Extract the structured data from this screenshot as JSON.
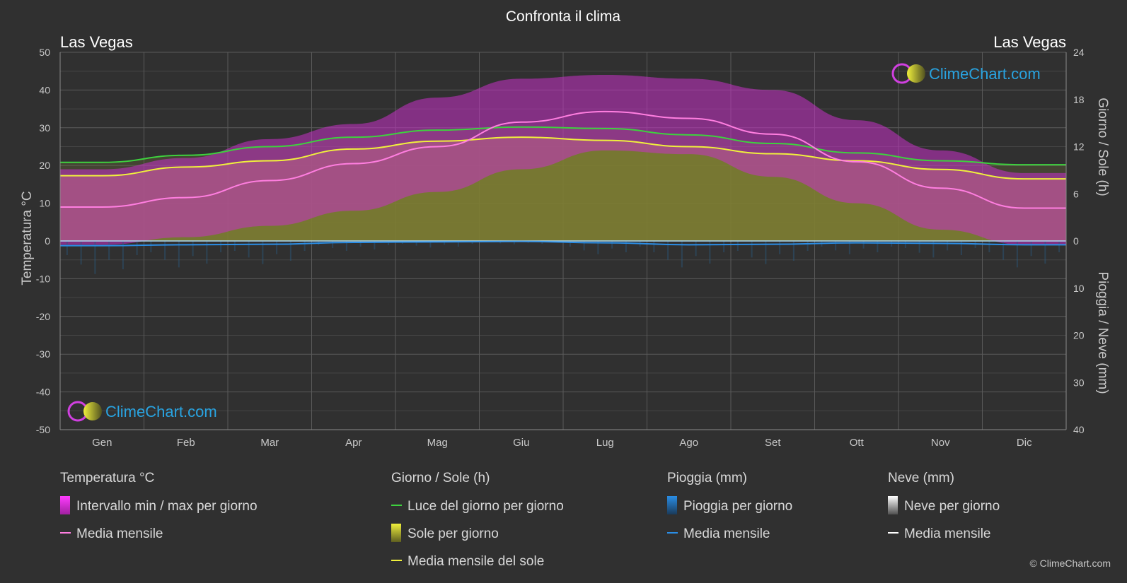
{
  "title": "Confronta il clima",
  "city_left": "Las Vegas",
  "city_right": "Las Vegas",
  "copyright": "© ClimeChart.com",
  "logo_text": "ClimeChart.com",
  "colors": {
    "background": "#303030",
    "temp_range": "#c832c8",
    "temp_mean": "#ff7ee0",
    "daylight": "#3ed13e",
    "sunshine": "#a8a832",
    "sunshine_mean": "#f0f03c",
    "rain": "#1e78c8",
    "rain_mean": "#2a8ee6",
    "snow": "#d8d8d8",
    "snow_mean": "#ffffff",
    "logo": "#29a3e0"
  },
  "chart_data": {
    "type": "area",
    "title": "Confronta il clima",
    "categories": [
      "Gen",
      "Feb",
      "Mar",
      "Apr",
      "Mag",
      "Giu",
      "Lug",
      "Ago",
      "Set",
      "Ott",
      "Nov",
      "Dic"
    ],
    "y_left": {
      "label": "Temperatura °C",
      "range": [
        -50,
        50
      ],
      "ticks": [
        "50",
        "40",
        "30",
        "20",
        "10",
        "0",
        "-10",
        "-20",
        "-30",
        "-40",
        "-50"
      ]
    },
    "y_right_top": {
      "label": "Giorno / Sole (h)",
      "range": [
        0,
        24
      ],
      "ticks": [
        "24",
        "18",
        "12",
        "6",
        "0"
      ]
    },
    "y_right_bottom": {
      "label": "Pioggia / Neve (mm)",
      "range": [
        0,
        40
      ],
      "ticks": [
        "0",
        "10",
        "20",
        "30",
        "40"
      ]
    },
    "grid": true,
    "series": {
      "temp_max_range": [
        19,
        22,
        27,
        31,
        38,
        43,
        44,
        43,
        40,
        32,
        24,
        18
      ],
      "temp_min_range": [
        -1,
        1,
        4,
        8,
        13,
        19,
        24,
        23,
        17,
        10,
        3,
        -1
      ],
      "temp_mean": [
        9,
        11.5,
        16,
        20.5,
        25,
        31.5,
        34.3,
        32.5,
        28.3,
        21,
        14,
        8.7
      ],
      "daylight_h": [
        10.0,
        10.9,
        12.0,
        13.2,
        14.1,
        14.5,
        14.3,
        13.5,
        12.4,
        11.2,
        10.2,
        9.7
      ],
      "sunshine_h": [
        8.3,
        9.4,
        10.2,
        11.7,
        12.7,
        13.2,
        12.8,
        12.0,
        11.1,
        10.2,
        9.1,
        7.9
      ],
      "rain_mean_mm": [
        1.0,
        0.8,
        0.7,
        0.3,
        0.2,
        0.1,
        0.4,
        0.8,
        0.7,
        0.4,
        0.5,
        0.8
      ],
      "snow_mean_mm": [
        0,
        0,
        0,
        0,
        0,
        0,
        0,
        0,
        0,
        0,
        0,
        0
      ]
    }
  },
  "legend": {
    "temp": {
      "heading": "Temperatura °C",
      "range": "Intervallo min / max per giorno",
      "mean": "Media mensile"
    },
    "sun": {
      "heading": "Giorno / Sole (h)",
      "daylight": "Luce del giorno per giorno",
      "sunshine": "Sole per giorno",
      "mean": "Media mensile del sole"
    },
    "rain": {
      "heading": "Pioggia (mm)",
      "per_day": "Pioggia per giorno",
      "mean": "Media mensile"
    },
    "snow": {
      "heading": "Neve (mm)",
      "per_day": "Neve per giorno",
      "mean": "Media mensile"
    }
  }
}
